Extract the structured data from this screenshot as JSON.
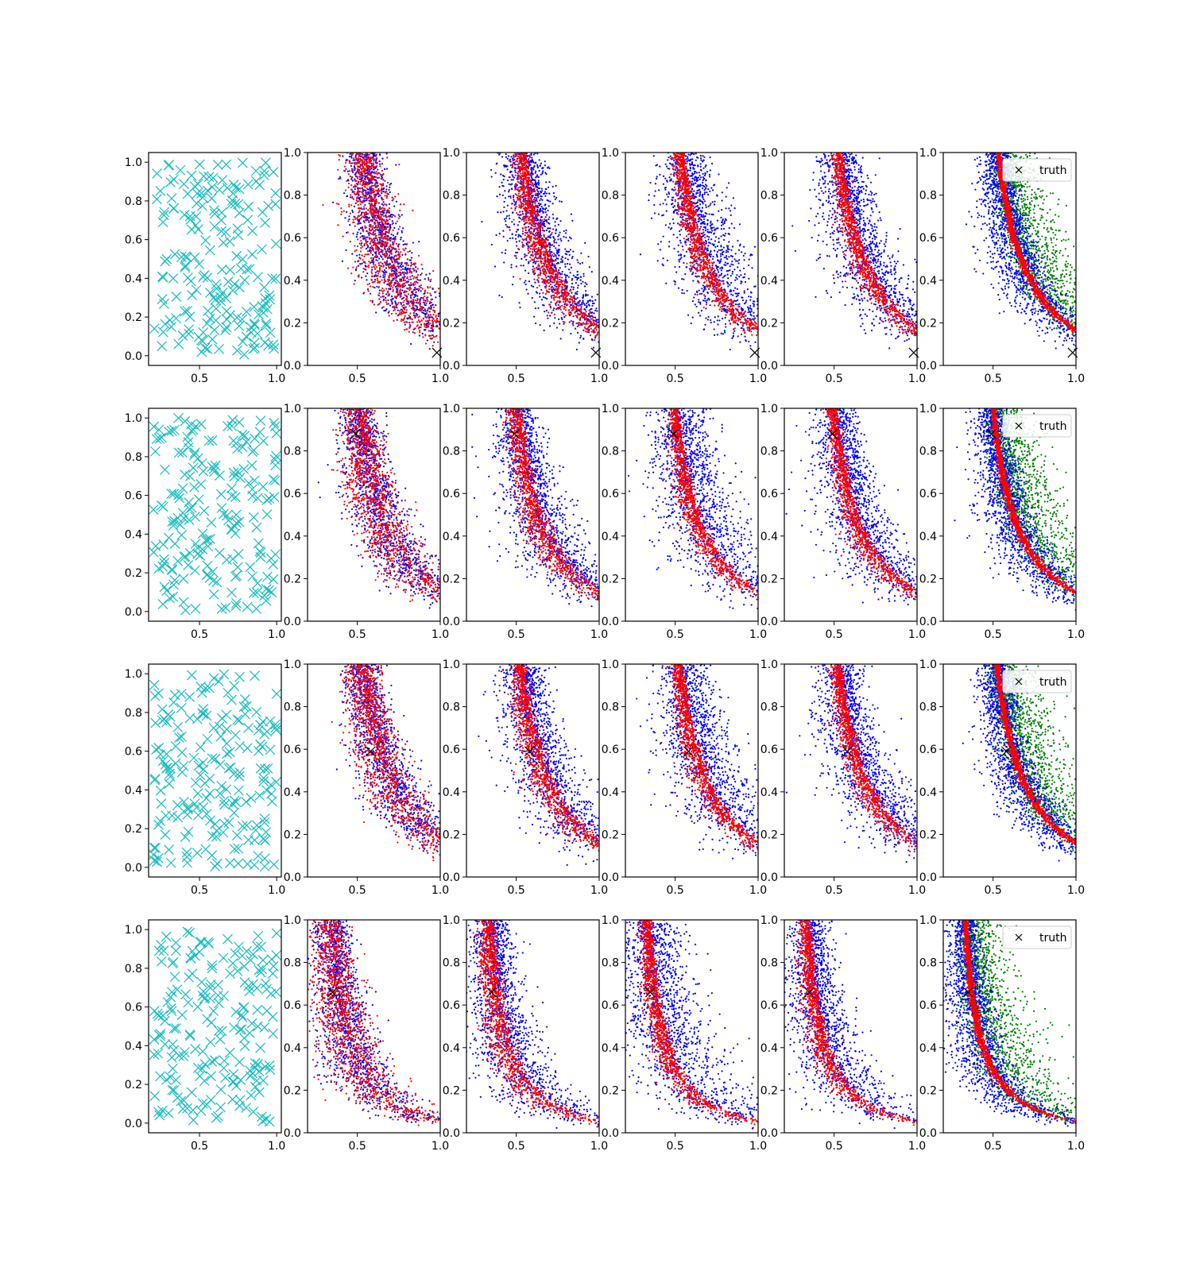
{
  "colors": {
    "samples": "#17bcbf",
    "blue": "#0000ff",
    "red": "#ff0000",
    "green": "#008000",
    "truth": "#000000"
  },
  "chart_data": {
    "type": "scatter",
    "layout": "4 rows x 6 columns grid of scatter panels",
    "xticks": [
      "0.5",
      "1.0"
    ],
    "first_column_yticks": [
      "0.0",
      "0.2",
      "0.4",
      "0.6",
      "0.8",
      "1.0"
    ],
    "first_column_xlim": [
      0.17,
      1.03
    ],
    "first_column_ylim": [
      -0.05,
      1.05
    ],
    "other_columns_xlim": [
      0.2,
      1.0
    ],
    "other_columns_ylim": [
      0.0,
      1.0
    ],
    "legend": {
      "label": "truth",
      "placement": "upper right",
      "column": 6
    },
    "rows": [
      {
        "truth": [
          0.98,
          0.06
        ],
        "curve_k": 0.21,
        "legend": true
      },
      {
        "truth": [
          0.49,
          0.88
        ],
        "curve_k": 0.17,
        "legend": true
      },
      {
        "truth": [
          0.58,
          0.59
        ],
        "curve_k": 0.2,
        "legend": true
      },
      {
        "truth": [
          0.35,
          0.66
        ],
        "curve_k": 0.09,
        "legend": true
      }
    ],
    "series": [
      {
        "column": 1,
        "color": "cyan",
        "marker": "x",
        "description": "uniform samples, about 200 per panel"
      },
      {
        "column": 2,
        "color": "blue",
        "marker": "point"
      },
      {
        "column": 2,
        "color": "red",
        "marker": "point"
      },
      {
        "column": 3,
        "color": "blue",
        "marker": "point"
      },
      {
        "column": 3,
        "color": "red",
        "marker": "point"
      },
      {
        "column": 4,
        "color": "blue",
        "marker": "point"
      },
      {
        "column": 4,
        "color": "red",
        "marker": "point"
      },
      {
        "column": 5,
        "color": "blue",
        "marker": "point"
      },
      {
        "column": 5,
        "color": "red",
        "marker": "point"
      },
      {
        "column": 6,
        "color": "green",
        "marker": "point"
      },
      {
        "column": 6,
        "color": "blue",
        "marker": "point"
      },
      {
        "column": 6,
        "color": "red",
        "marker": "point"
      },
      {
        "column": 6,
        "color": "black",
        "marker": "x",
        "name": "truth"
      }
    ]
  }
}
